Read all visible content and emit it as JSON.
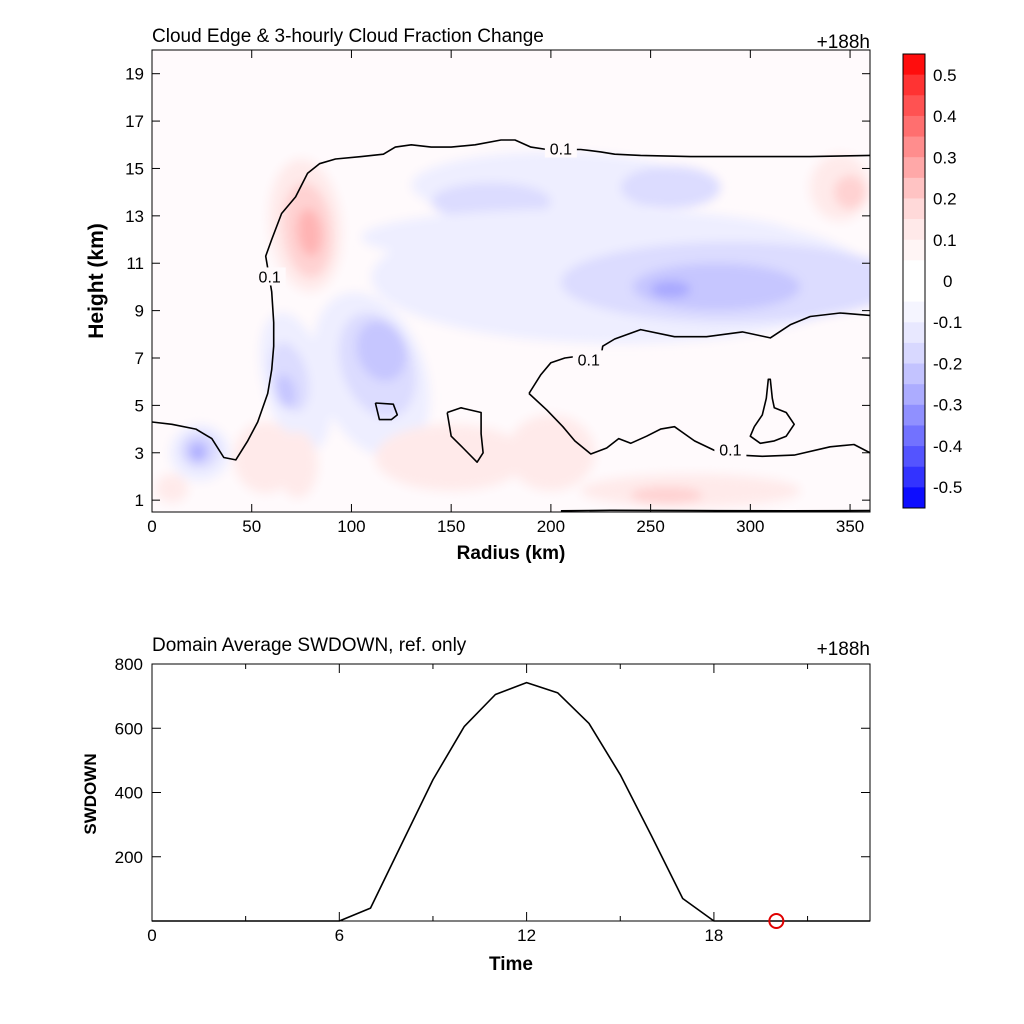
{
  "chart_data": [
    {
      "type": "contour",
      "title": "Cloud Edge & 3-hourly Cloud Fraction Change",
      "time_label": "+188h",
      "xlabel": "Radius (km)",
      "ylabel": "Height (km)",
      "xlim": [
        0,
        360
      ],
      "ylim": [
        0.5,
        20
      ],
      "x_ticks": [
        0,
        50,
        100,
        150,
        200,
        250,
        300,
        350
      ],
      "y_ticks": [
        1,
        3,
        5,
        7,
        9,
        11,
        13,
        15,
        17,
        19
      ],
      "colorbar": {
        "levels": [
          0.5,
          0.4,
          0.3,
          0.2,
          0.1,
          0,
          -0.1,
          -0.2,
          -0.3,
          -0.4,
          -0.5
        ],
        "labels": [
          "0.5",
          "0.4",
          "0.3",
          "0.2",
          "0.1",
          "0",
          "-0.1",
          "-0.2",
          "-0.3",
          "-0.4",
          "-0.5"
        ],
        "colors": [
          "#ff0d0d",
          "#ff3333",
          "#ff5252",
          "#ff6f6f",
          "#ff8d8d",
          "#ffa8a8",
          "#ffc3c3",
          "#ffd9d9",
          "#ffe9e9",
          "#fff5f5",
          "#ffffff",
          "#ffffff",
          "#f5f5ff",
          "#e8e8ff",
          "#d8d8ff",
          "#c3c3ff",
          "#acacff",
          "#9090ff",
          "#7272ff",
          "#5454ff",
          "#3333ff",
          "#0d0dff"
        ]
      },
      "contour_level_label": "0.1",
      "contours": [
        {
          "points": [
            [
              0,
              4.3
            ],
            [
              10,
              4.2
            ],
            [
              22,
              4.0
            ],
            [
              30,
              3.6
            ],
            [
              36,
              2.8
            ],
            [
              42,
              2.7
            ],
            [
              48,
              3.5
            ],
            [
              53,
              4.3
            ],
            [
              58,
              5.5
            ],
            [
              60,
              6.5
            ],
            [
              61,
              7.5
            ],
            [
              61,
              8.5
            ],
            [
              60,
              9.8
            ],
            [
              57,
              11.3
            ],
            [
              60,
              12.0
            ],
            [
              65,
              13.1
            ],
            [
              72,
              13.8
            ],
            [
              78,
              14.8
            ],
            [
              84,
              15.2
            ],
            [
              92,
              15.4
            ],
            [
              105,
              15.5
            ],
            [
              116,
              15.6
            ],
            [
              122,
              15.9
            ],
            [
              130,
              16.0
            ],
            [
              140,
              15.9
            ],
            [
              150,
              15.9
            ],
            [
              162,
              16.0
            ],
            [
              175,
              16.2
            ],
            [
              182,
              16.2
            ],
            [
              190,
              15.9
            ],
            [
              198,
              15.8
            ],
            [
              205,
              15.8
            ],
            [
              215,
              15.8
            ],
            [
              225,
              15.7
            ],
            [
              232,
              15.6
            ],
            [
              245,
              15.55
            ],
            [
              270,
              15.5
            ],
            [
              300,
              15.5
            ],
            [
              330,
              15.5
            ],
            [
              360,
              15.55
            ]
          ],
          "label_at": [
            [
              59,
              10.4
            ],
            [
              205,
              15.8
            ]
          ]
        },
        {
          "points": [
            [
              189,
              5.5
            ],
            [
              195,
              6.3
            ],
            [
              200,
              6.8
            ],
            [
              207,
              7.0
            ],
            [
              216,
              7.1
            ],
            [
              225,
              7.0
            ],
            [
              226,
              7.5
            ],
            [
              232,
              7.8
            ],
            [
              245,
              8.2
            ],
            [
              262,
              7.9
            ],
            [
              278,
              7.9
            ],
            [
              296,
              8.1
            ],
            [
              310,
              7.85
            ],
            [
              320,
              8.4
            ],
            [
              330,
              8.75
            ],
            [
              345,
              8.9
            ],
            [
              360,
              8.8
            ]
          ],
          "label_at": [
            [
              219,
              6.9
            ]
          ]
        },
        {
          "points": [
            [
              189,
              5.5
            ],
            [
              198,
              4.8
            ],
            [
              206,
              4.1
            ],
            [
              212,
              3.5
            ],
            [
              220,
              2.95
            ],
            [
              228,
              3.2
            ],
            [
              234,
              3.6
            ],
            [
              240,
              3.4
            ],
            [
              248,
              3.7
            ],
            [
              255,
              4.0
            ],
            [
              262,
              4.1
            ],
            [
              272,
              3.5
            ],
            [
              282,
              3.1
            ],
            [
              294,
              2.9
            ],
            [
              306,
              2.85
            ],
            [
              322,
              2.9
            ],
            [
              340,
              3.25
            ],
            [
              352,
              3.35
            ],
            [
              360,
              3.0
            ]
          ],
          "label_at": [
            [
              290,
              3.1
            ]
          ]
        },
        {
          "points": [
            [
              112,
              5.1
            ],
            [
              121,
              5.05
            ],
            [
              123,
              4.6
            ],
            [
              120,
              4.4
            ],
            [
              114,
              4.4
            ],
            [
              112,
              5.1
            ]
          ]
        },
        {
          "points": [
            [
              148,
              4.7
            ],
            [
              155,
              4.9
            ],
            [
              165,
              4.7
            ],
            [
              165,
              3.8
            ],
            [
              166,
              3.0
            ],
            [
              163,
              2.6
            ],
            [
              156,
              3.2
            ],
            [
              150,
              3.7
            ],
            [
              148,
              4.7
            ]
          ]
        },
        {
          "points": [
            [
              302,
              4.1
            ],
            [
              306,
              4.6
            ],
            [
              308,
              5.3
            ],
            [
              309,
              6.1
            ],
            [
              310,
              6.1
            ],
            [
              311,
              5.3
            ],
            [
              312,
              4.9
            ],
            [
              318,
              4.7
            ],
            [
              322,
              4.2
            ],
            [
              318,
              3.7
            ],
            [
              312,
              3.5
            ],
            [
              305,
              3.4
            ],
            [
              300,
              3.7
            ],
            [
              302,
              4.1
            ]
          ]
        },
        {
          "points": [
            [
              205,
              0.55
            ],
            [
              230,
              0.57
            ],
            [
              270,
              0.56
            ],
            [
              320,
              0.55
            ],
            [
              360,
              0.56
            ]
          ]
        }
      ]
    },
    {
      "type": "line",
      "title": "Domain Average SWDOWN, ref. only",
      "time_label": "+188h",
      "xlabel": "Time",
      "ylabel": "SWDOWN",
      "xlim": [
        0,
        23
      ],
      "ylim": [
        0,
        800
      ],
      "x_ticks": [
        0,
        6,
        12,
        18
      ],
      "y_ticks": [
        200,
        400,
        600,
        800
      ],
      "series": [
        {
          "x": [
            0,
            1,
            2,
            3,
            4,
            5,
            6,
            7,
            8,
            9,
            10,
            11,
            12,
            13,
            14,
            15,
            16,
            17,
            18,
            19,
            20,
            21,
            22,
            23
          ],
          "values": [
            0,
            0,
            0,
            0,
            0,
            0,
            0,
            40,
            240,
            440,
            605,
            705,
            742,
            710,
            615,
            455,
            265,
            70,
            0,
            0,
            0,
            0,
            0,
            0
          ],
          "color": "#000000"
        }
      ],
      "marker": {
        "x": 20,
        "value": 0,
        "color": "#e00000"
      }
    }
  ]
}
